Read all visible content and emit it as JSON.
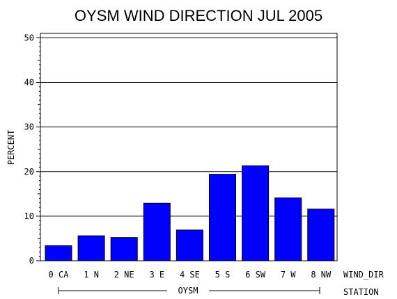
{
  "chart_data": {
    "type": "bar",
    "title": "OYSM WIND DIRECTION JUL 2005",
    "ylabel": "PERCENT",
    "xlabel": "WIND_DIR",
    "group_axis_label": "STATION",
    "group_label": "OYSM",
    "categories": [
      "0 CA",
      "1 N",
      "2 NE",
      "3 E",
      "4 SE",
      "5 S",
      "6 SW",
      "7 W",
      "8 NW"
    ],
    "values": [
      3.4,
      5.6,
      5.2,
      12.9,
      6.9,
      19.4,
      21.3,
      14.1,
      11.6
    ],
    "ylim": [
      0,
      51
    ],
    "yticks": [
      "0",
      "10",
      "20",
      "30",
      "40",
      "50"
    ],
    "grid": true,
    "bar_color": "#0000ff"
  }
}
